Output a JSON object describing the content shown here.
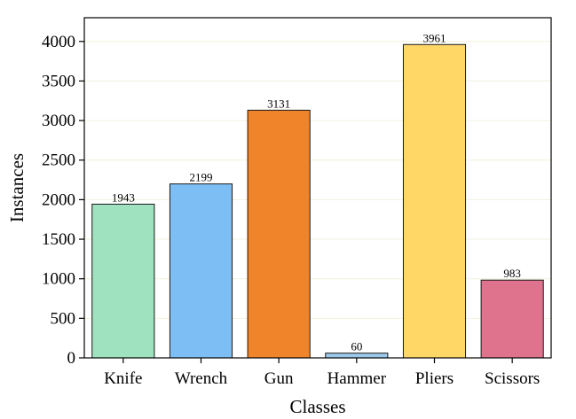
{
  "chart_data": {
    "type": "bar",
    "title": "",
    "xlabel": "Classes",
    "ylabel": "Instances",
    "categories": [
      "Knife",
      "Wrench",
      "Gun",
      "Hammer",
      "Pliers",
      "Scissors"
    ],
    "values": [
      1943,
      2199,
      3131,
      60,
      3961,
      983
    ],
    "data_labels": [
      "1943",
      "2199",
      "3131",
      "60",
      "3961",
      "983"
    ],
    "colors": [
      "#9fe2bf",
      "#7dbff5",
      "#ef842a",
      "#9cc8ea",
      "#fed767",
      "#df728c"
    ],
    "ylim": [
      0,
      4300
    ],
    "yticks": [
      0,
      500,
      1000,
      1500,
      2000,
      2500,
      3000,
      3500,
      4000
    ],
    "ytick_labels": [
      "0",
      "500",
      "1000",
      "1500",
      "2000",
      "2500",
      "3000",
      "3500",
      "4000"
    ],
    "grid": true,
    "grid_color": "#f3f1dc",
    "legend": "none"
  }
}
